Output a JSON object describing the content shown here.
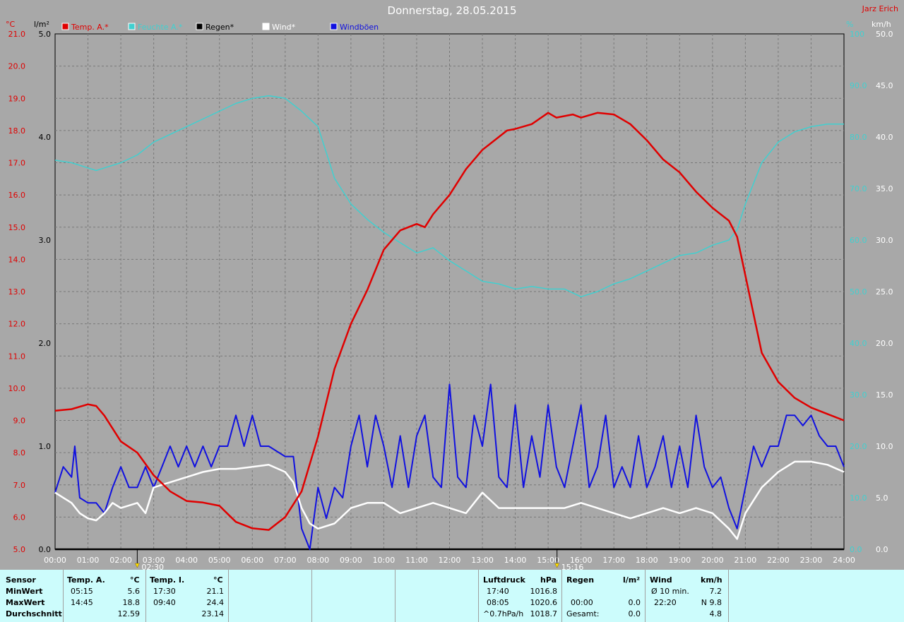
{
  "chart_data": {
    "type": "line",
    "title": "Donnerstag, 28.05.2015",
    "author": "Jarz Erich",
    "legend": [
      {
        "name": "Temp. A.*",
        "color": "#e00000"
      },
      {
        "name": "Feuchte A.*",
        "color": "#40d0d0"
      },
      {
        "name": "Regen*",
        "color": "#000000"
      },
      {
        "name": "Wind*",
        "color": "#ffffff"
      },
      {
        "name": "Windböen",
        "color": "#1010e0"
      }
    ],
    "axes": {
      "temp": {
        "unit": "°C",
        "min": 5.0,
        "max": 21.0,
        "ticks": [
          "5.0",
          "6.0",
          "7.0",
          "8.0",
          "9.0",
          "10.0",
          "11.0",
          "12.0",
          "13.0",
          "14.0",
          "15.0",
          "16.0",
          "17.0",
          "18.0",
          "19.0",
          "20.0",
          "21.0"
        ]
      },
      "rain": {
        "unit": "l/m²",
        "min": 0.0,
        "max": 5.0,
        "ticks": [
          "0.0",
          "1.0",
          "2.0",
          "3.0",
          "4.0",
          "5.0"
        ]
      },
      "humidity": {
        "unit": "%",
        "min": 0,
        "max": 100,
        "ticks": [
          "0.0",
          "10.0",
          "20.0",
          "30.0",
          "40.0",
          "50.0",
          "60.0",
          "70.0",
          "80.0",
          "90.0",
          "100"
        ]
      },
      "wind_gust": {
        "unit": "km/h",
        "min": 0,
        "max": 50,
        "ticks": [
          "0.0",
          "5.0",
          "10.0",
          "15.0",
          "20.0",
          "25.0",
          "30.0",
          "35.0",
          "40.0",
          "45.0",
          "50.0"
        ]
      },
      "wind": {
        "unit": "km/h",
        "min": 0,
        "max": 50,
        "ticks": [
          "0.0",
          "5.0",
          "10.0",
          "15.0",
          "20.0",
          "25.0",
          "30.0",
          "35.0",
          "40.0",
          "45.0",
          "50.0"
        ]
      },
      "x_ticks": [
        "00:00",
        "01:00",
        "02:00",
        "03:00",
        "04:00",
        "05:00",
        "06:00",
        "07:00",
        "08:00",
        "09:00",
        "10:00",
        "11:00",
        "12:00",
        "13:00",
        "14:00",
        "15:00",
        "16:00",
        "17:00",
        "18:00",
        "19:00",
        "20:00",
        "21:00",
        "22:00",
        "23:00",
        "24:00"
      ]
    },
    "markers": [
      {
        "time": 2.5,
        "label": "02:30"
      },
      {
        "time": 15.27,
        "label": "15:16"
      }
    ],
    "series": [
      {
        "name": "Temp. A.*",
        "axis": "temp",
        "color": "#e00000",
        "points": [
          [
            0,
            9.3
          ],
          [
            0.5,
            9.35
          ],
          [
            1,
            9.5
          ],
          [
            1.25,
            9.45
          ],
          [
            1.5,
            9.15
          ],
          [
            2,
            8.35
          ],
          [
            2.5,
            8.0
          ],
          [
            3,
            7.3
          ],
          [
            3.5,
            6.8
          ],
          [
            4,
            6.5
          ],
          [
            4.5,
            6.45
          ],
          [
            5,
            6.35
          ],
          [
            5.25,
            6.1
          ],
          [
            5.5,
            5.85
          ],
          [
            6,
            5.65
          ],
          [
            6.5,
            5.6
          ],
          [
            7,
            6.0
          ],
          [
            7.5,
            6.8
          ],
          [
            8,
            8.5
          ],
          [
            8.5,
            10.6
          ],
          [
            9,
            12.0
          ],
          [
            9.5,
            13.05
          ],
          [
            10,
            14.3
          ],
          [
            10.5,
            14.9
          ],
          [
            11,
            15.1
          ],
          [
            11.25,
            15.0
          ],
          [
            11.5,
            15.4
          ],
          [
            12,
            16.0
          ],
          [
            12.5,
            16.8
          ],
          [
            13,
            17.4
          ],
          [
            13.25,
            17.6
          ],
          [
            13.75,
            18.0
          ],
          [
            14,
            18.05
          ],
          [
            14.5,
            18.2
          ],
          [
            15,
            18.55
          ],
          [
            15.25,
            18.4
          ],
          [
            15.75,
            18.5
          ],
          [
            16,
            18.4
          ],
          [
            16.5,
            18.55
          ],
          [
            17,
            18.5
          ],
          [
            17.5,
            18.2
          ],
          [
            18,
            17.7
          ],
          [
            18.5,
            17.1
          ],
          [
            19,
            16.7
          ],
          [
            19.5,
            16.1
          ],
          [
            20,
            15.6
          ],
          [
            20.5,
            15.2
          ],
          [
            20.75,
            14.7
          ],
          [
            21,
            13.5
          ],
          [
            21.5,
            11.1
          ],
          [
            22,
            10.2
          ],
          [
            22.5,
            9.7
          ],
          [
            23,
            9.4
          ],
          [
            23.5,
            9.2
          ],
          [
            24,
            9.0
          ]
        ]
      },
      {
        "name": "Feuchte A.*",
        "axis": "humidity",
        "color": "#40d0d0",
        "points": [
          [
            0,
            75.5
          ],
          [
            0.5,
            75
          ],
          [
            1,
            74
          ],
          [
            1.25,
            73.5
          ],
          [
            1.5,
            74
          ],
          [
            2,
            75
          ],
          [
            2.5,
            76.5
          ],
          [
            3,
            79
          ],
          [
            3.5,
            80.5
          ],
          [
            4,
            82
          ],
          [
            4.5,
            83.5
          ],
          [
            5,
            85
          ],
          [
            5.5,
            86.5
          ],
          [
            6,
            87.5
          ],
          [
            6.5,
            88
          ],
          [
            7,
            87.5
          ],
          [
            7.5,
            85
          ],
          [
            8,
            82
          ],
          [
            8.5,
            72
          ],
          [
            9,
            67
          ],
          [
            9.5,
            64
          ],
          [
            10,
            61.5
          ],
          [
            10.5,
            59.5
          ],
          [
            11,
            57.5
          ],
          [
            11.5,
            58.5
          ],
          [
            12,
            56
          ],
          [
            12.5,
            54
          ],
          [
            13,
            52
          ],
          [
            13.5,
            51.5
          ],
          [
            14,
            50.5
          ],
          [
            14.5,
            51
          ],
          [
            15,
            50.5
          ],
          [
            15.5,
            50.5
          ],
          [
            16,
            49
          ],
          [
            16.5,
            50
          ],
          [
            17,
            51.5
          ],
          [
            17.5,
            52.5
          ],
          [
            18,
            54
          ],
          [
            18.5,
            55.5
          ],
          [
            19,
            57
          ],
          [
            19.5,
            57.5
          ],
          [
            20,
            59
          ],
          [
            20.5,
            60
          ],
          [
            20.75,
            62
          ],
          [
            21,
            67
          ],
          [
            21.5,
            75
          ],
          [
            22,
            79
          ],
          [
            22.5,
            81
          ],
          [
            23,
            82
          ],
          [
            23.5,
            82.5
          ],
          [
            24,
            82.5
          ]
        ]
      },
      {
        "name": "Regen*",
        "axis": "rain",
        "color": "#000000",
        "points": [
          [
            0,
            0
          ],
          [
            24,
            0
          ]
        ]
      },
      {
        "name": "Wind*",
        "axis": "wind",
        "color": "#ffffff",
        "points": [
          [
            0,
            5.5
          ],
          [
            0.5,
            4.5
          ],
          [
            0.75,
            3.5
          ],
          [
            1,
            3.0
          ],
          [
            1.25,
            2.8
          ],
          [
            1.5,
            3.5
          ],
          [
            1.75,
            4.5
          ],
          [
            2,
            4.0
          ],
          [
            2.5,
            4.5
          ],
          [
            2.75,
            3.5
          ],
          [
            3,
            6.0
          ],
          [
            3.5,
            6.5
          ],
          [
            4,
            7.0
          ],
          [
            4.5,
            7.5
          ],
          [
            5,
            7.8
          ],
          [
            5.5,
            7.8
          ],
          [
            6,
            8.0
          ],
          [
            6.5,
            8.2
          ],
          [
            7,
            7.5
          ],
          [
            7.25,
            6.5
          ],
          [
            7.5,
            4.0
          ],
          [
            7.75,
            2.5
          ],
          [
            8,
            2.0
          ],
          [
            8.5,
            2.5
          ],
          [
            9,
            4.0
          ],
          [
            9.5,
            4.5
          ],
          [
            10,
            4.5
          ],
          [
            10.5,
            3.5
          ],
          [
            11,
            4.0
          ],
          [
            11.5,
            4.5
          ],
          [
            12,
            4.0
          ],
          [
            12.5,
            3.5
          ],
          [
            13,
            5.5
          ],
          [
            13.5,
            4.0
          ],
          [
            14,
            4.0
          ],
          [
            14.5,
            4.0
          ],
          [
            15,
            4.0
          ],
          [
            15.5,
            4.0
          ],
          [
            16,
            4.5
          ],
          [
            16.5,
            4.0
          ],
          [
            17,
            3.5
          ],
          [
            17.5,
            3.0
          ],
          [
            18,
            3.5
          ],
          [
            18.5,
            4.0
          ],
          [
            19,
            3.5
          ],
          [
            19.5,
            4.0
          ],
          [
            20,
            3.5
          ],
          [
            20.5,
            2.0
          ],
          [
            20.75,
            1.0
          ],
          [
            21,
            3.5
          ],
          [
            21.5,
            6.0
          ],
          [
            22,
            7.5
          ],
          [
            22.5,
            8.5
          ],
          [
            23,
            8.5
          ],
          [
            23.5,
            8.2
          ],
          [
            24,
            7.5
          ]
        ]
      },
      {
        "name": "Windböen",
        "axis": "wind_gust",
        "color": "#1010e0",
        "points": [
          [
            0,
            5.5
          ],
          [
            0.25,
            8
          ],
          [
            0.5,
            7
          ],
          [
            0.6,
            10
          ],
          [
            0.75,
            5
          ],
          [
            1,
            4.5
          ],
          [
            1.25,
            4.5
          ],
          [
            1.5,
            3.5
          ],
          [
            1.75,
            6
          ],
          [
            2,
            8
          ],
          [
            2.25,
            6
          ],
          [
            2.5,
            6
          ],
          [
            2.75,
            8
          ],
          [
            3,
            6
          ],
          [
            3.25,
            8
          ],
          [
            3.5,
            10
          ],
          [
            3.75,
            8
          ],
          [
            4,
            10
          ],
          [
            4.25,
            8
          ],
          [
            4.5,
            10
          ],
          [
            4.75,
            8
          ],
          [
            5,
            10
          ],
          [
            5.25,
            10
          ],
          [
            5.5,
            13
          ],
          [
            5.75,
            10
          ],
          [
            6,
            13
          ],
          [
            6.25,
            10
          ],
          [
            6.5,
            10
          ],
          [
            7,
            9
          ],
          [
            7.25,
            9
          ],
          [
            7.5,
            2
          ],
          [
            7.75,
            0
          ],
          [
            8,
            6
          ],
          [
            8.25,
            3
          ],
          [
            8.5,
            6
          ],
          [
            8.75,
            5
          ],
          [
            9,
            10
          ],
          [
            9.25,
            13
          ],
          [
            9.5,
            8
          ],
          [
            9.75,
            13
          ],
          [
            10,
            10
          ],
          [
            10.25,
            6
          ],
          [
            10.5,
            11
          ],
          [
            10.75,
            6
          ],
          [
            11,
            11
          ],
          [
            11.25,
            13
          ],
          [
            11.5,
            7
          ],
          [
            11.75,
            6
          ],
          [
            12,
            16
          ],
          [
            12.25,
            7
          ],
          [
            12.5,
            6
          ],
          [
            12.75,
            13
          ],
          [
            13,
            10
          ],
          [
            13.25,
            16
          ],
          [
            13.5,
            7
          ],
          [
            13.75,
            6
          ],
          [
            14,
            14
          ],
          [
            14.25,
            6
          ],
          [
            14.5,
            11
          ],
          [
            14.75,
            7
          ],
          [
            15,
            14
          ],
          [
            15.25,
            8
          ],
          [
            15.5,
            6
          ],
          [
            15.75,
            10
          ],
          [
            16,
            14
          ],
          [
            16.25,
            6
          ],
          [
            16.5,
            8
          ],
          [
            16.75,
            13
          ],
          [
            17,
            6
          ],
          [
            17.25,
            8
          ],
          [
            17.5,
            6
          ],
          [
            17.75,
            11
          ],
          [
            18,
            6
          ],
          [
            18.25,
            8
          ],
          [
            18.5,
            11
          ],
          [
            18.75,
            6
          ],
          [
            19,
            10
          ],
          [
            19.25,
            6
          ],
          [
            19.5,
            13
          ],
          [
            19.75,
            8
          ],
          [
            20,
            6
          ],
          [
            20.25,
            7
          ],
          [
            20.5,
            4
          ],
          [
            20.75,
            2
          ],
          [
            21,
            6
          ],
          [
            21.25,
            10
          ],
          [
            21.5,
            8
          ],
          [
            21.75,
            10
          ],
          [
            22,
            10
          ],
          [
            22.25,
            13
          ],
          [
            22.5,
            13
          ],
          [
            22.75,
            12
          ],
          [
            23,
            13
          ],
          [
            23.25,
            11
          ],
          [
            23.5,
            10
          ],
          [
            23.75,
            10
          ],
          [
            24,
            8
          ]
        ]
      }
    ]
  },
  "table": {
    "sensor": {
      "header": "Sensor",
      "rows": [
        "MinWert",
        "MaxWert",
        "Durchschnitt"
      ]
    },
    "temp_a": {
      "header": "Temp. A.",
      "unit": "°C",
      "min_time": "05:15",
      "min_val": "5.6",
      "max_time": "14:45",
      "max_val": "18.8",
      "avg": "12.59"
    },
    "temp_i": {
      "header": "Temp. I.",
      "unit": "°C",
      "min_time": "17:30",
      "min_val": "21.1",
      "max_time": "09:40",
      "max_val": "24.4",
      "avg": "23.14"
    },
    "pressure": {
      "header": "Luftdruck",
      "unit": "hPa",
      "min_time": "17:40",
      "min_val": "1016.8",
      "max_time": "08:05",
      "max_val": "1020.6",
      "trend_label": "^0.7hPa/h",
      "trend_val": "1018.7"
    },
    "rain": {
      "header": "Regen",
      "unit": "l/m²",
      "time": "00:00",
      "val": "0.0",
      "total_label": "Gesamt:",
      "total_val": "0.0"
    },
    "wind": {
      "header": "Wind",
      "unit": "km/h",
      "avg_label": "Ø 10 min.",
      "avg_val": "7.2",
      "max_time": "22:20",
      "max_val": "N 9.8",
      "mean": "4.8"
    }
  }
}
